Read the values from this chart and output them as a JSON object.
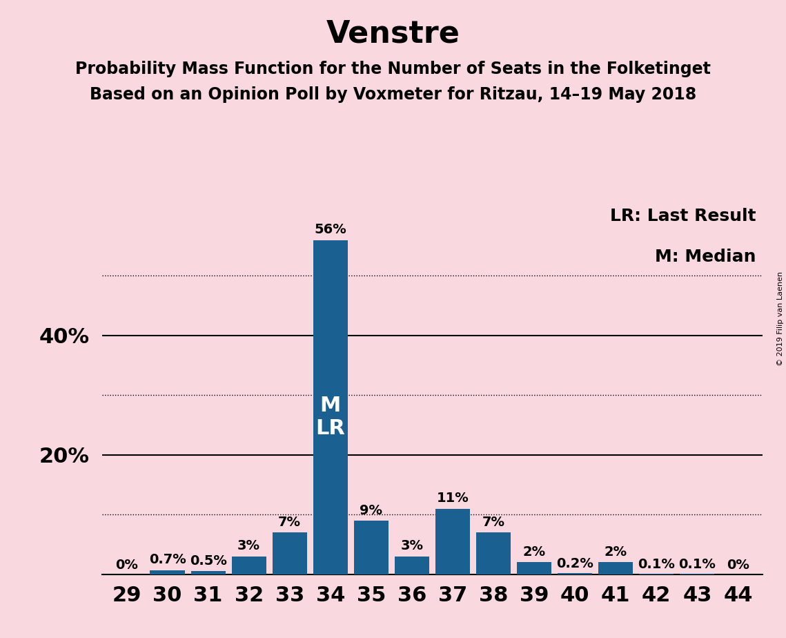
{
  "title": "Venstre",
  "subtitle1": "Probability Mass Function for the Number of Seats in the Folketinget",
  "subtitle2": "Based on an Opinion Poll by Voxmeter for Ritzau, 14–19 May 2018",
  "copyright": "© 2019 Filip van Laenen",
  "categories": [
    29,
    30,
    31,
    32,
    33,
    34,
    35,
    36,
    37,
    38,
    39,
    40,
    41,
    42,
    43,
    44
  ],
  "values": [
    0.0,
    0.7,
    0.5,
    3.0,
    7.0,
    56.0,
    9.0,
    3.0,
    11.0,
    7.0,
    2.0,
    0.2,
    2.0,
    0.1,
    0.1,
    0.0
  ],
  "labels": [
    "0%",
    "0.7%",
    "0.5%",
    "3%",
    "7%",
    "56%",
    "9%",
    "3%",
    "11%",
    "7%",
    "2%",
    "0.2%",
    "2%",
    "0.1%",
    "0.1%",
    "0%"
  ],
  "bar_color": "#1a6090",
  "background_color": "#f9d8e0",
  "median_seat": 34,
  "last_result_seat": 34,
  "legend_lr": "LR: Last Result",
  "legend_m": "M: Median",
  "bar_label_inside": "M\nLR",
  "solid_lines": [
    20,
    40
  ],
  "dotted_lines": [
    10,
    30,
    50
  ],
  "ylim": [
    0,
    62
  ],
  "title_fontsize": 32,
  "subtitle_fontsize": 17,
  "axis_fontsize": 22,
  "bar_label_fontsize": 14,
  "legend_fontsize": 18,
  "inside_label_fontsize": 22
}
